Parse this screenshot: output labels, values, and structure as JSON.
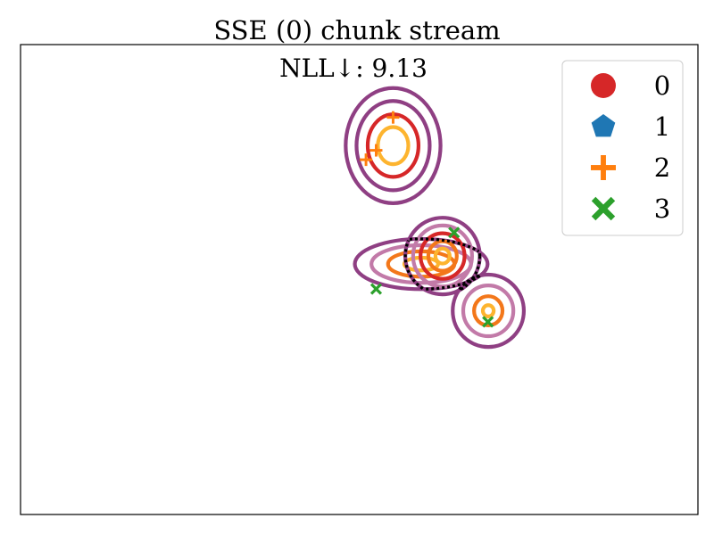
{
  "chart_data": {
    "type": "scatter",
    "title": "SSE (0) chunk stream",
    "annotation": "NLL↓: 9.13",
    "xlabel": "",
    "ylabel": "",
    "xlim": [
      -1.0,
      1.0
    ],
    "ylim": [
      -1.0,
      1.0
    ],
    "ticks": false,
    "grid": false,
    "legend": {
      "placement": "top-right"
    },
    "series": [
      {
        "name": "0",
        "marker": "circle",
        "color": "#d62728",
        "points": []
      },
      {
        "name": "1",
        "marker": "pentagon",
        "color": "#1f77b4",
        "points": []
      },
      {
        "name": "2",
        "marker": "plus",
        "color": "#ff7f0e",
        "points": [
          [
            0.1,
            0.69
          ],
          [
            0.05,
            0.55
          ],
          [
            0.02,
            0.51
          ]
        ]
      },
      {
        "name": "3",
        "marker": "x",
        "color": "#2ca02c",
        "points": [
          [
            0.05,
            -0.04
          ],
          [
            0.28,
            0.2
          ],
          [
            0.38,
            -0.18
          ]
        ]
      }
    ],
    "contour_colors": {
      "inner": "#fdb42f",
      "mid1": "#f3771a",
      "mid2": "#d62728",
      "mid3": "#c27aa8",
      "outer": "#8f3f83",
      "boundary": "#000000"
    },
    "components": [
      {
        "cx": 0.1,
        "cy": 0.57,
        "rx": [
          0.045,
          0.075,
          0.108,
          0.14
        ],
        "ry": [
          0.079,
          0.133,
          0.19,
          0.245
        ],
        "rings": [
          "inner",
          "mid2",
          "outer",
          "outer"
        ]
      },
      {
        "cx": 0.183,
        "cy": 0.066,
        "rx": [
          0.05,
          0.098,
          0.147,
          0.196
        ],
        "ry": [
          0.027,
          0.054,
          0.08,
          0.107
        ],
        "rings": [
          "inner",
          "mid1",
          "mid3",
          "outer"
        ]
      },
      {
        "cx": 0.246,
        "cy": 0.1,
        "rx": [
          0.021,
          0.042,
          0.065,
          0.087,
          0.11
        ],
        "ry": [
          0.032,
          0.063,
          0.097,
          0.13,
          0.163
        ],
        "rings": [
          "inner",
          "mid1",
          "mid2",
          "mid3",
          "outer"
        ]
      },
      {
        "cx": 0.381,
        "cy": -0.133,
        "rx": [
          0.016,
          0.042,
          0.074,
          0.105
        ],
        "ry": [
          0.024,
          0.062,
          0.108,
          0.154
        ],
        "rings": [
          "inner",
          "mid1",
          "mid3",
          "outer"
        ]
      }
    ]
  }
}
